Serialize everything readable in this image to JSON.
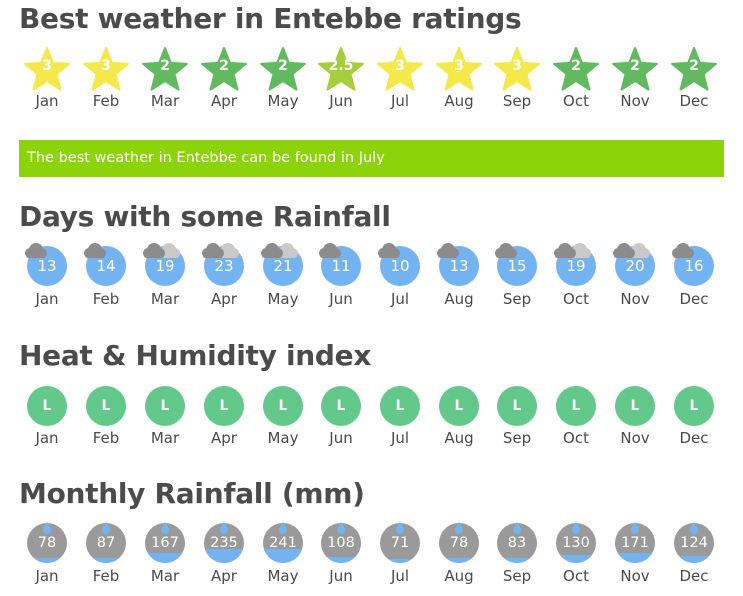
{
  "ratings": {
    "title": "Best weather in Entebbe ratings",
    "months": [
      {
        "month": "Jan",
        "value": "3",
        "color": "#f5e84a"
      },
      {
        "month": "Feb",
        "value": "3",
        "color": "#f5e84a"
      },
      {
        "month": "Mar",
        "value": "2",
        "color": "#62b960"
      },
      {
        "month": "Apr",
        "value": "2",
        "color": "#62b960"
      },
      {
        "month": "May",
        "value": "2",
        "color": "#62b960"
      },
      {
        "month": "Jun",
        "value": "2.5",
        "color": "#a6cd3c"
      },
      {
        "month": "Jul",
        "value": "3",
        "color": "#f5e84a"
      },
      {
        "month": "Aug",
        "value": "3",
        "color": "#f5e84a"
      },
      {
        "month": "Sep",
        "value": "3",
        "color": "#f5e84a"
      },
      {
        "month": "Oct",
        "value": "2",
        "color": "#62b960"
      },
      {
        "month": "Nov",
        "value": "2",
        "color": "#62b960"
      },
      {
        "month": "Dec",
        "value": "2",
        "color": "#62b960"
      }
    ]
  },
  "best_banner": "The best weather in Entebbe can be found in July",
  "rainfall_days": {
    "title": "Days with some Rainfall",
    "icon": "cloud-icon",
    "months": [
      {
        "month": "Jan",
        "value": "13",
        "clouds": 1
      },
      {
        "month": "Feb",
        "value": "14",
        "clouds": 1
      },
      {
        "month": "Mar",
        "value": "19",
        "clouds": 2
      },
      {
        "month": "Apr",
        "value": "23",
        "clouds": 2
      },
      {
        "month": "May",
        "value": "21",
        "clouds": 2
      },
      {
        "month": "Jun",
        "value": "11",
        "clouds": 1
      },
      {
        "month": "Jul",
        "value": "10",
        "clouds": 1
      },
      {
        "month": "Aug",
        "value": "13",
        "clouds": 1
      },
      {
        "month": "Sep",
        "value": "15",
        "clouds": 1
      },
      {
        "month": "Oct",
        "value": "19",
        "clouds": 2
      },
      {
        "month": "Nov",
        "value": "20",
        "clouds": 2
      },
      {
        "month": "Dec",
        "value": "16",
        "clouds": 1
      }
    ]
  },
  "heat_humidity": {
    "title": "Heat & Humidity index",
    "months": [
      {
        "month": "Jan",
        "value": "L"
      },
      {
        "month": "Feb",
        "value": "L"
      },
      {
        "month": "Mar",
        "value": "L"
      },
      {
        "month": "Apr",
        "value": "L"
      },
      {
        "month": "May",
        "value": "L"
      },
      {
        "month": "Jun",
        "value": "L"
      },
      {
        "month": "Jul",
        "value": "L"
      },
      {
        "month": "Aug",
        "value": "L"
      },
      {
        "month": "Sep",
        "value": "L"
      },
      {
        "month": "Oct",
        "value": "L"
      },
      {
        "month": "Nov",
        "value": "L"
      },
      {
        "month": "Dec",
        "value": "L"
      }
    ]
  },
  "monthly_rainfall": {
    "title": "Monthly Rainfall (mm)",
    "icon": "raindrop-icon",
    "max_mm": 300,
    "months": [
      {
        "month": "Jan",
        "value": "78"
      },
      {
        "month": "Feb",
        "value": "87"
      },
      {
        "month": "Mar",
        "value": "167"
      },
      {
        "month": "Apr",
        "value": "235"
      },
      {
        "month": "May",
        "value": "241"
      },
      {
        "month": "Jun",
        "value": "108"
      },
      {
        "month": "Jul",
        "value": "71"
      },
      {
        "month": "Aug",
        "value": "78"
      },
      {
        "month": "Sep",
        "value": "83"
      },
      {
        "month": "Oct",
        "value": "130"
      },
      {
        "month": "Nov",
        "value": "171"
      },
      {
        "month": "Dec",
        "value": "124"
      }
    ]
  }
}
